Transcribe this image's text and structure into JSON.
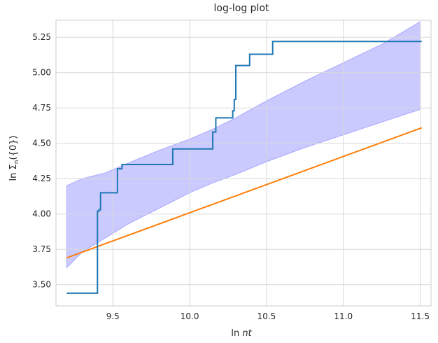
{
  "chart_data": {
    "type": "line",
    "title": "log-log plot",
    "xlabel_parts": [
      "ln ",
      "nt"
    ],
    "ylabel_parts": [
      "ln Σ",
      "n",
      "({0})"
    ],
    "xlim": [
      9.13,
      11.57
    ],
    "ylim": [
      3.35,
      5.37
    ],
    "x_ticks": [
      9.5,
      10.0,
      10.5,
      11.0,
      11.5
    ],
    "x_tick_labels": [
      "9.5",
      "10.0",
      "10.5",
      "11.0",
      "11.5"
    ],
    "y_ticks": [
      3.5,
      3.75,
      4.0,
      4.25,
      4.5,
      4.75,
      5.0,
      5.25
    ],
    "y_tick_labels": [
      "3.50",
      "3.75",
      "4.00",
      "4.25",
      "4.50",
      "4.75",
      "5.00",
      "5.25"
    ],
    "grid": true,
    "colors": {
      "empirical": "#1f77b4",
      "theoretical": "#ff7f0e",
      "band_fill": "#8080ff",
      "band_edge": "#8080ff",
      "grid": "#d8d8d8",
      "axes": "#cccccc",
      "text": "#262626"
    },
    "series": [
      {
        "kind": "step",
        "x": [
          9.2,
          9.4,
          9.4,
          9.41,
          9.41,
          9.42,
          9.42,
          9.53,
          9.53,
          9.56,
          9.56,
          9.89,
          9.89,
          10.15,
          10.15,
          10.17,
          10.17,
          10.28,
          10.28,
          10.29,
          10.29,
          10.3,
          10.3,
          10.39,
          10.39,
          10.54,
          10.54,
          11.51
        ],
        "y": [
          3.44,
          3.44,
          4.02,
          4.02,
          4.03,
          4.03,
          4.15,
          4.15,
          4.32,
          4.32,
          4.35,
          4.35,
          4.46,
          4.46,
          4.58,
          4.58,
          4.68,
          4.68,
          4.73,
          4.73,
          4.81,
          4.81,
          5.05,
          5.05,
          5.13,
          5.13,
          5.22,
          5.22
        ]
      },
      {
        "kind": "line",
        "x": [
          9.2,
          11.51
        ],
        "y": [
          3.69,
          4.61
        ]
      }
    ],
    "band": {
      "x": [
        9.2,
        9.3,
        9.45,
        9.6,
        9.8,
        10.0,
        10.15,
        10.3,
        10.5,
        10.75,
        11.0,
        11.25,
        11.5
      ],
      "upper": [
        4.2,
        4.25,
        4.29,
        4.36,
        4.45,
        4.53,
        4.6,
        4.68,
        4.8,
        4.94,
        5.07,
        5.2,
        5.36
      ],
      "lower": [
        3.62,
        3.73,
        3.83,
        3.93,
        4.04,
        4.15,
        4.22,
        4.28,
        4.37,
        4.47,
        4.56,
        4.65,
        4.74
      ]
    }
  }
}
